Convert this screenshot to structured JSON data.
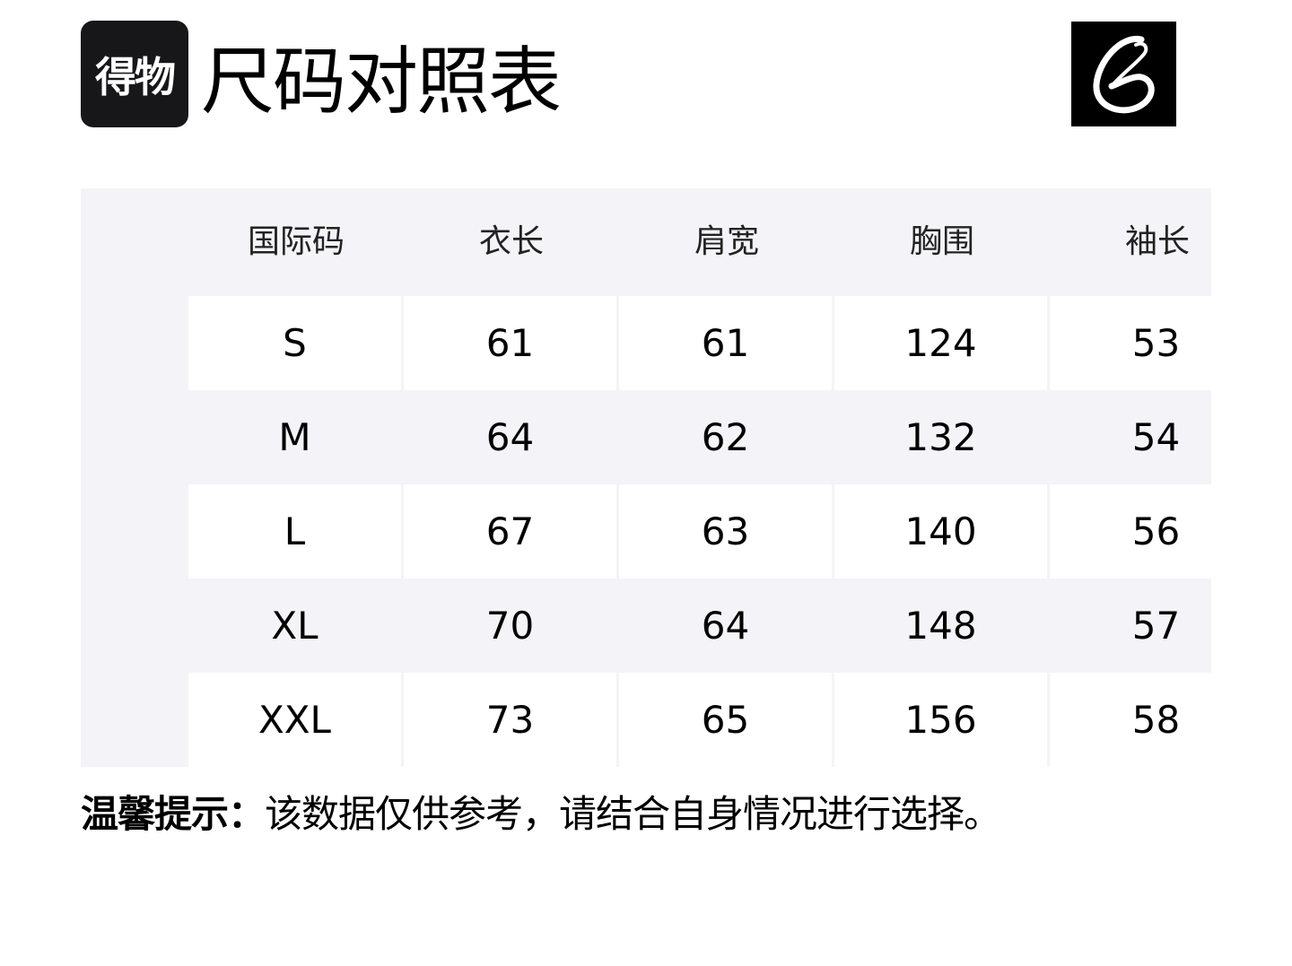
{
  "header": {
    "logo_text": "得物",
    "title": "尺码对照表",
    "brand_logo": "B"
  },
  "table": {
    "columns": [
      "国际码",
      "衣长",
      "肩宽",
      "胸围",
      "袖长"
    ],
    "rows": [
      [
        "S",
        "61",
        "61",
        "124",
        "53"
      ],
      [
        "M",
        "64",
        "62",
        "132",
        "54"
      ],
      [
        "L",
        "67",
        "63",
        "140",
        "56"
      ],
      [
        "XL",
        "70",
        "64",
        "148",
        "57"
      ],
      [
        "XXL",
        "73",
        "65",
        "156",
        "58"
      ]
    ]
  },
  "note": {
    "label": "温馨提示：",
    "text": "该数据仅供参考，请结合自身情况进行选择。"
  }
}
